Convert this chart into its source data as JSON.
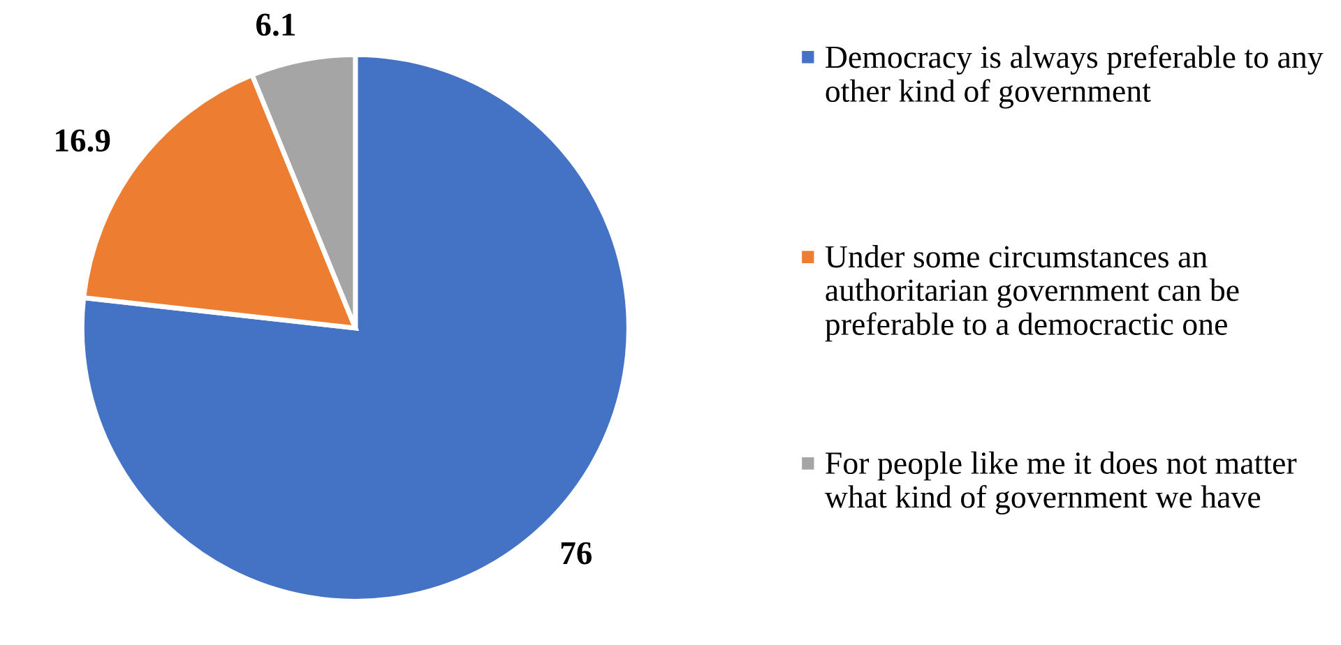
{
  "chart_data": {
    "type": "pie",
    "categories": [
      "Democracy is always preferable to any other kind of government",
      "Under some circumstances an authoritarian government can be preferable to a democractic one",
      "For people like me it does not matter what kind of government we have"
    ],
    "values": [
      76,
      16.9,
      6.1
    ],
    "colors": [
      "#4472c4",
      "#ed7d31",
      "#a5a5a5"
    ],
    "data_labels": true,
    "legend": "right"
  }
}
